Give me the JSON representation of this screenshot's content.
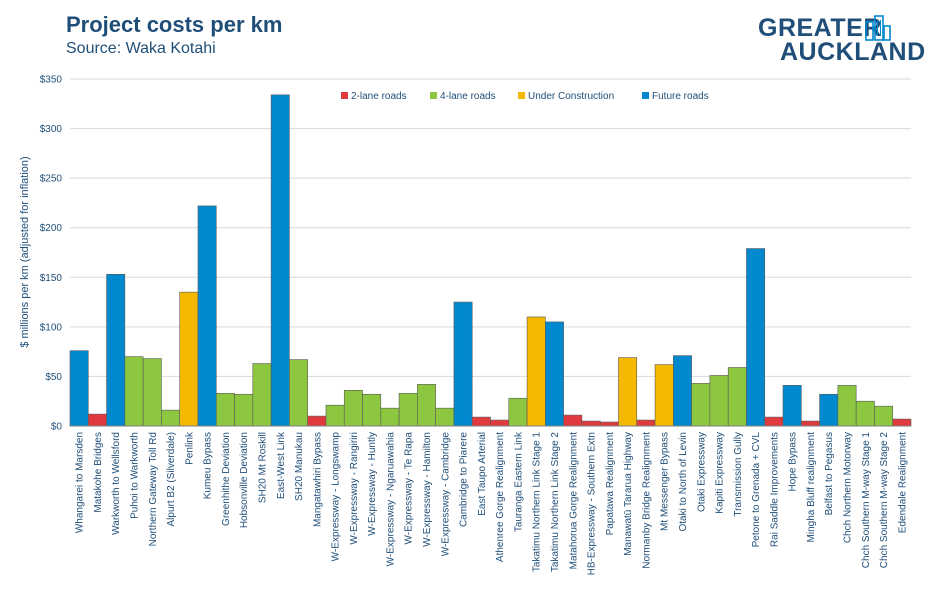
{
  "header": {
    "title": "Project costs per km",
    "subtitle": "Source: Waka Kotahi",
    "logo_line1": "GREATER",
    "logo_line2": "AUCKLAND"
  },
  "colors": {
    "2-lane roads": "#e0393e",
    "4-lane roads": "#8dc63f",
    "Under Construction": "#f5b800",
    "Future roads": "#0089cf",
    "text": "#1f4e79",
    "grid": "#d9d9d9"
  },
  "chart_data": {
    "type": "bar",
    "ylabel": "$ millions per km (adjusted for inflation)",
    "ylim": [
      0,
      350
    ],
    "yticks": [
      0,
      50,
      100,
      150,
      200,
      250,
      300,
      350
    ],
    "ytick_labels": [
      "$0",
      "$50",
      "$100",
      "$150",
      "$200",
      "$250",
      "$300",
      "$350"
    ],
    "legend": [
      "2-lane roads",
      "4-lane roads",
      "Under Construction",
      "Future roads"
    ],
    "legend_position": "top-center",
    "grid": true,
    "categories": [
      "Whangarei to Marsden",
      "Matakohe Bridges",
      "Warkworth to Wellsford",
      "Puhoi to Warkworth",
      "Northern Gateway Toll Rd",
      "Alpurt B2 (Silverdale)",
      "Penlink",
      "Kumeu Bypass",
      "Greenhithe Deviation",
      "Hobsonville Deviation",
      "SH20 Mt Roskill",
      "East-West Link",
      "SH20 Manukau",
      "Mangatawhiri Bypass",
      "W-Expressway - Longswamp",
      "W-Expressway - Rangiriri",
      "W-Expressway - Huntly",
      "W-Expressway - Ngaruawahia",
      "W-Expressway - Te Rapa",
      "W-Expressway - Hamilton",
      "W-Expressway - Cambridge",
      "Cambridge to Piarere",
      "East Taupo Arterial",
      "Athenree Gorge Realignment",
      "Tauranga Eastern Link",
      "Takatimu Northern Link Stage 1",
      "Takatimu Northern Link Stage 2",
      "Matahorua Gorge Realignment",
      "HB-Expressway - Southern Extn",
      "Papatawa Realignment",
      "Manawatū Tararua Highway",
      "Normanby Bridge Realignment",
      "Mt Messenger Bypass",
      "Otaki to North of Levin",
      "Otaki Expressway",
      "Kapiti Expressway",
      "Transmission Gully",
      "Petone to Grenada + CVL",
      "Rai Saddle Improvements",
      "Hope Bypass",
      "Mingha Bluff realignment",
      "Belfast to Pegasus",
      "Chch Northern Motorway",
      "Chch Southern M-way Stage 1",
      "Chch Southern M-way Stage 2",
      "Edendale Realignment"
    ],
    "values": [
      76,
      12,
      153,
      70,
      68,
      16,
      135,
      222,
      33,
      32,
      63,
      334,
      67,
      10,
      21,
      36,
      32,
      18,
      33,
      42,
      18,
      125,
      9,
      6,
      28,
      110,
      105,
      11,
      5,
      4,
      69,
      6,
      62,
      71,
      43,
      51,
      59,
      179,
      9,
      41,
      5,
      32,
      41,
      25,
      20,
      7
    ],
    "groups": [
      "Future roads",
      "2-lane roads",
      "Future roads",
      "4-lane roads",
      "4-lane roads",
      "4-lane roads",
      "Under Construction",
      "Future roads",
      "4-lane roads",
      "4-lane roads",
      "4-lane roads",
      "Future roads",
      "4-lane roads",
      "2-lane roads",
      "4-lane roads",
      "4-lane roads",
      "4-lane roads",
      "4-lane roads",
      "4-lane roads",
      "4-lane roads",
      "4-lane roads",
      "Future roads",
      "2-lane roads",
      "2-lane roads",
      "4-lane roads",
      "Under Construction",
      "Future roads",
      "2-lane roads",
      "2-lane roads",
      "2-lane roads",
      "Under Construction",
      "2-lane roads",
      "Under Construction",
      "Future roads",
      "4-lane roads",
      "4-lane roads",
      "4-lane roads",
      "Future roads",
      "2-lane roads",
      "Future roads",
      "2-lane roads",
      "Future roads",
      "4-lane roads",
      "4-lane roads",
      "4-lane roads",
      "2-lane roads"
    ]
  }
}
